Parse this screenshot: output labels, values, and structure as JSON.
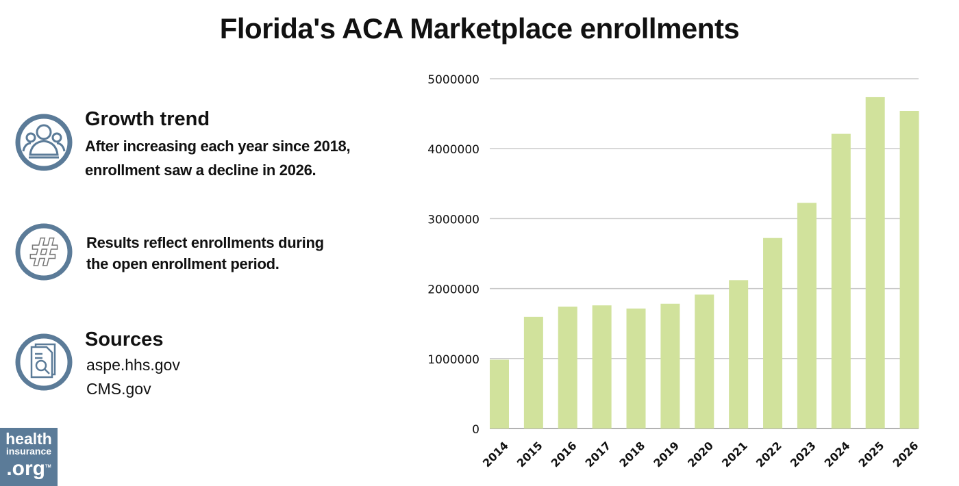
{
  "title": "Florida's ACA Marketplace enrollments",
  "panels": {
    "growth": {
      "heading": "Growth trend",
      "line1": "After increasing each year since 2018,",
      "line2": "enrollment saw a decline in 2026."
    },
    "note": {
      "line1": "Results reflect enrollments during",
      "line2": "the open enrollment period."
    },
    "sources": {
      "heading": "Sources",
      "items": [
        "aspe.hhs.gov",
        "CMS.gov"
      ]
    }
  },
  "logo": {
    "line1": "health",
    "line2": "insurance",
    "line3": ".org",
    "tm": "TM"
  },
  "colors": {
    "bar": "#d1e29c",
    "icon": "#5b7b98",
    "grid": "#c8c8c8"
  },
  "icons": [
    "people-group-icon",
    "hashtag-icon",
    "document-search-icon"
  ],
  "chart_data": {
    "type": "bar",
    "title": "Florida's ACA Marketplace enrollments",
    "categories": [
      "2014",
      "2015",
      "2016",
      "2017",
      "2018",
      "2019",
      "2020",
      "2021",
      "2022",
      "2023",
      "2024",
      "2025",
      "2026"
    ],
    "values": [
      983775,
      1596296,
      1742819,
      1760025,
      1715227,
      1783304,
      1913975,
      2120350,
      2723094,
      3225435,
      4211902,
      4736554,
      4540000
    ],
    "ylim": [
      0,
      5000000
    ],
    "yticks": [
      "0",
      "1000000",
      "2000000",
      "3000000",
      "4000000",
      "5000000"
    ],
    "grid": true,
    "xlabel": "",
    "ylabel": ""
  }
}
